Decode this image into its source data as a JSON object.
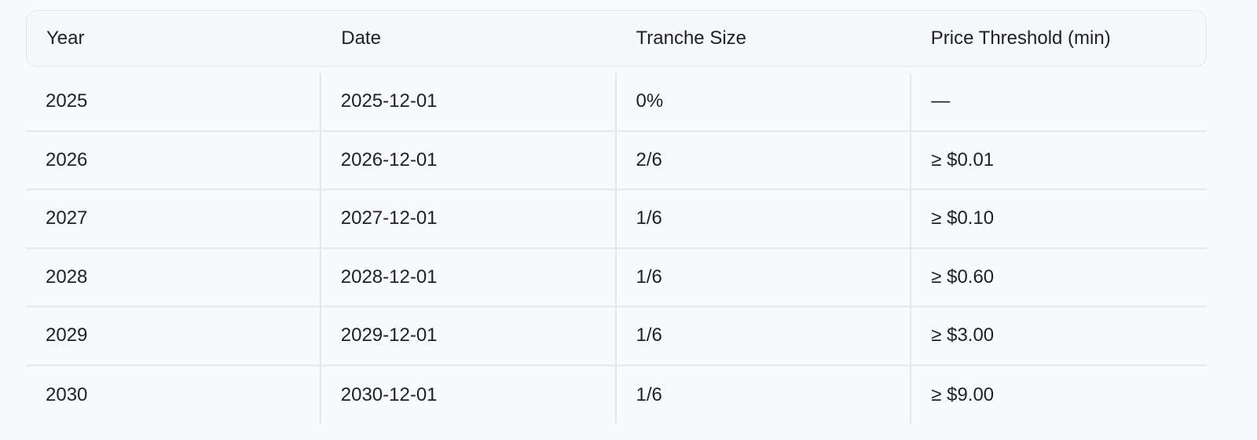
{
  "table": {
    "headers": [
      "Year",
      "Date",
      "Tranche Size",
      "Price Threshold (min)"
    ],
    "rows": [
      [
        "2025",
        "2025-12-01",
        "0%",
        "—"
      ],
      [
        "2026",
        "2026-12-01",
        "2/6",
        "≥ $0.01"
      ],
      [
        "2027",
        "2027-12-01",
        "1/6",
        "≥ $0.10"
      ],
      [
        "2028",
        "2028-12-01",
        "1/6",
        "≥ $0.60"
      ],
      [
        "2029",
        "2029-12-01",
        "1/6",
        "≥ $3.00"
      ],
      [
        "2030",
        "2030-12-01",
        "1/6",
        "≥ $9.00"
      ]
    ]
  }
}
